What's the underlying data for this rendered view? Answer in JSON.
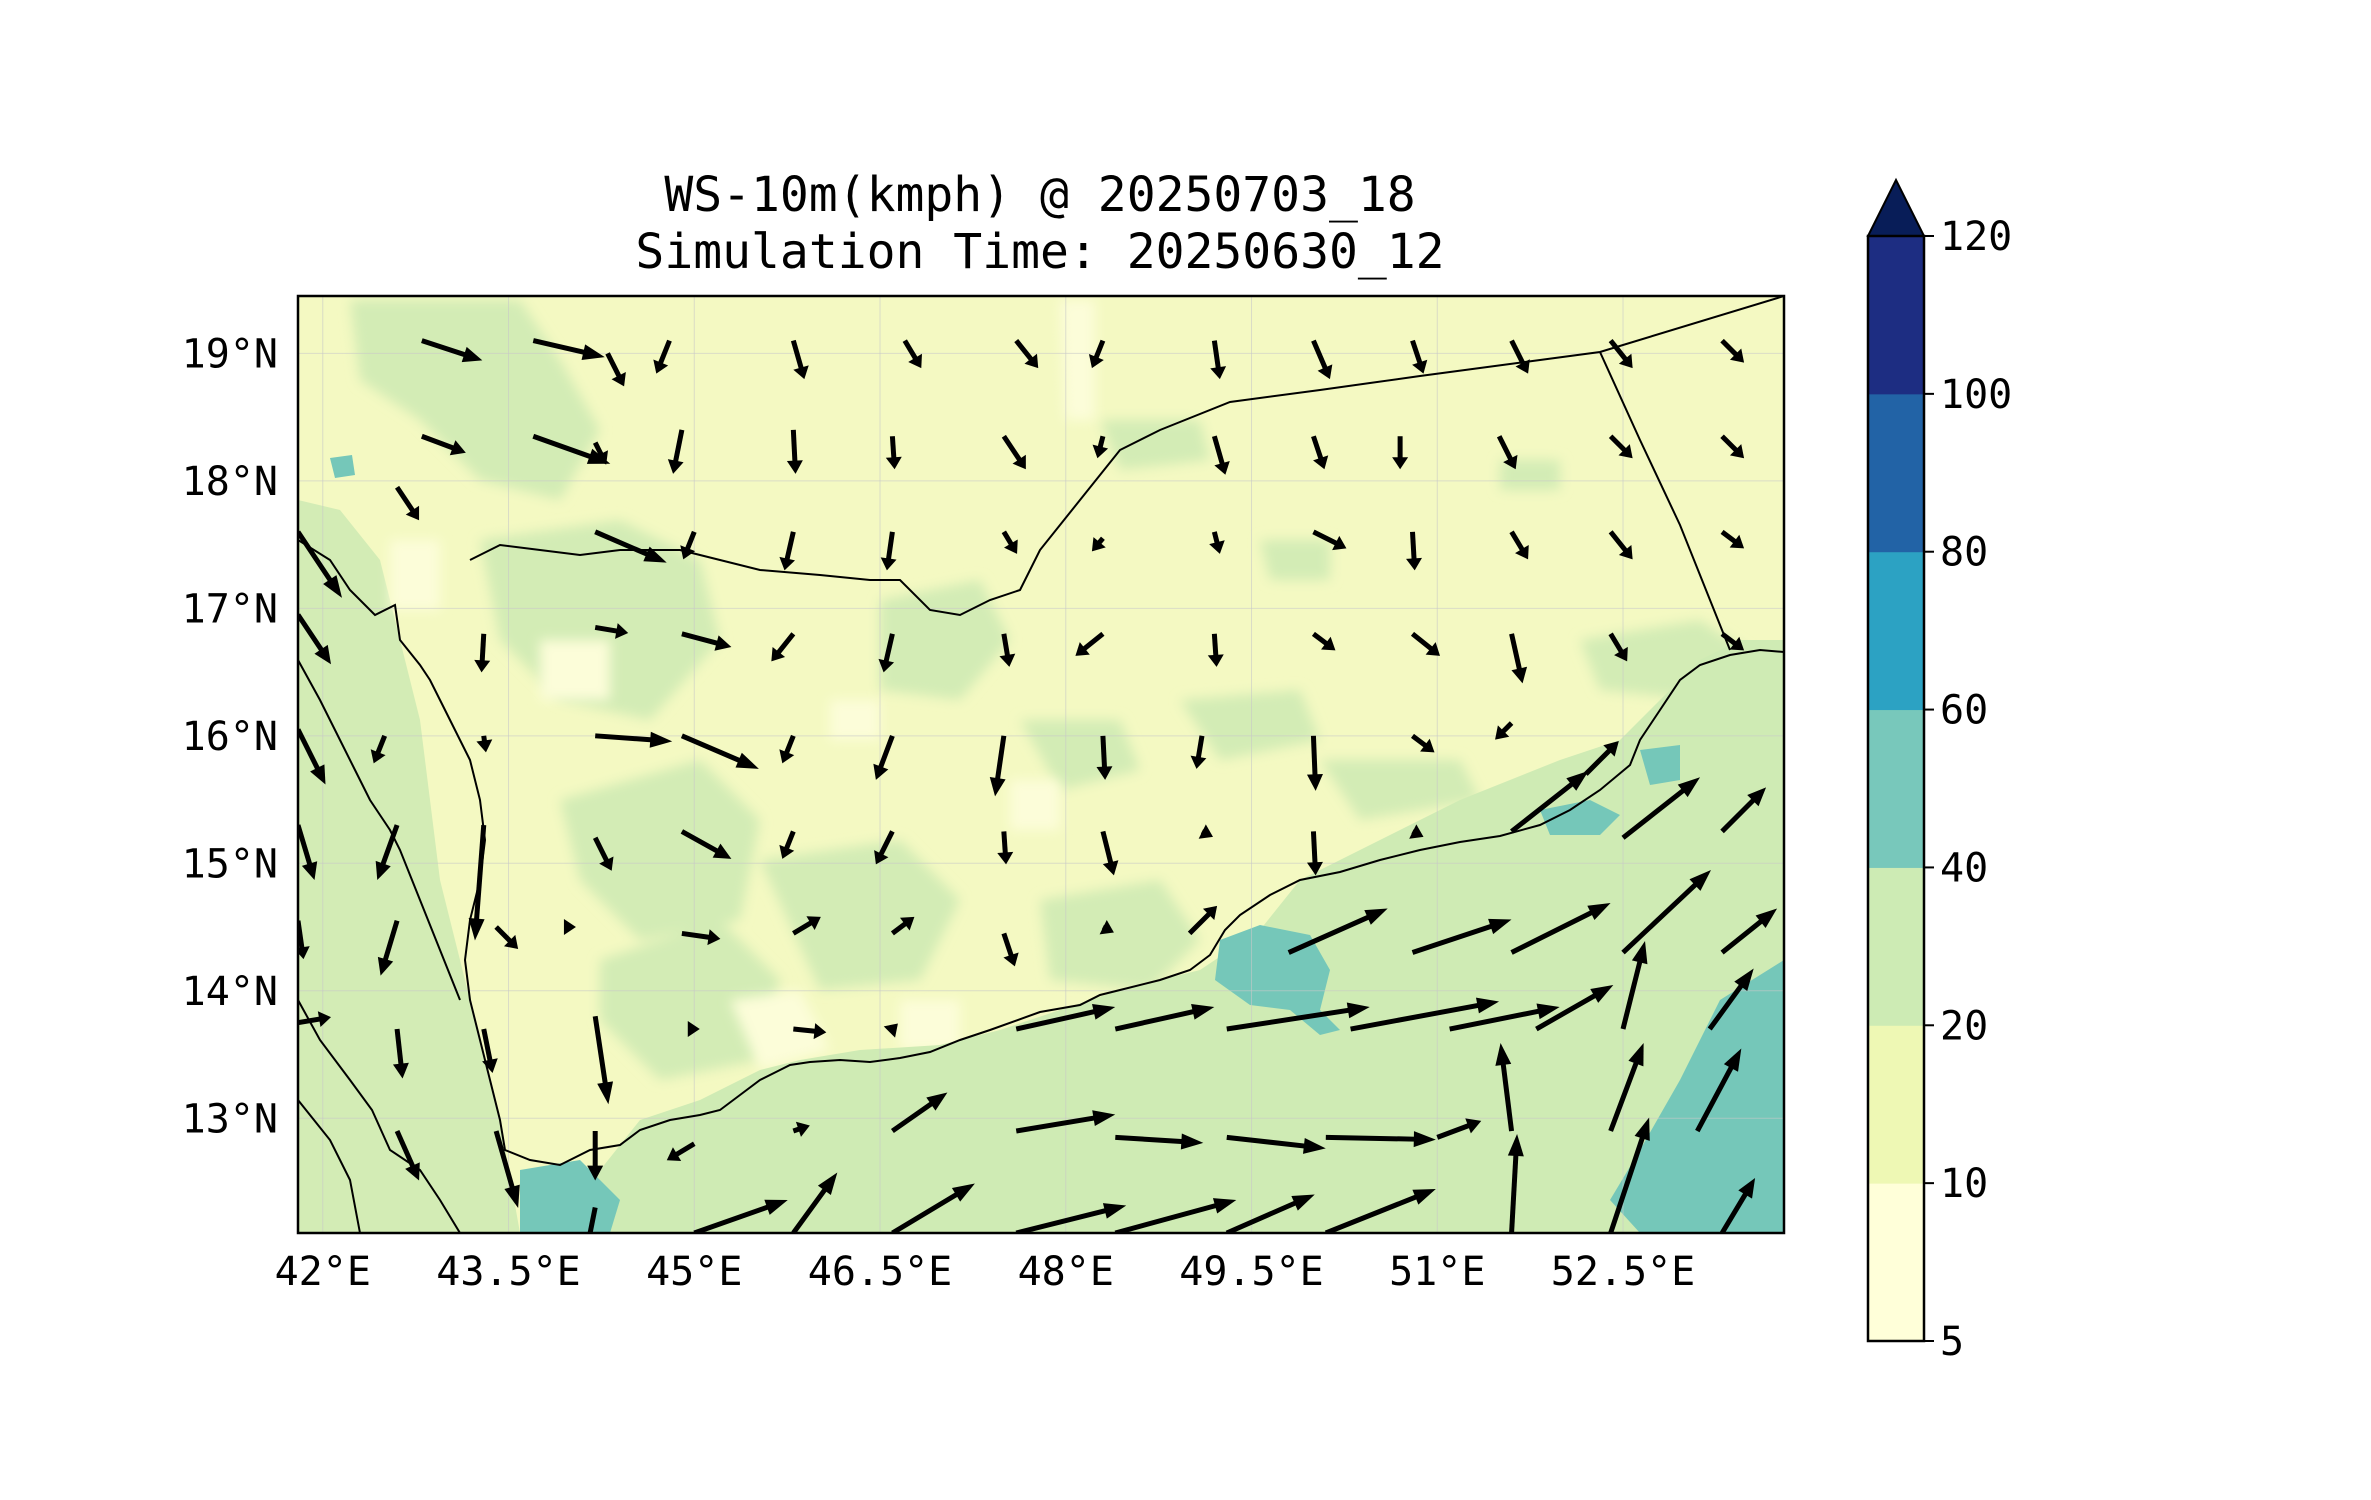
{
  "title_line1": "WS-10m(kmph) @ 20250703_18",
  "title_line2": "Simulation Time: 20250630_12",
  "map": {
    "lon_range": [
      41.8,
      53.8
    ],
    "lat_range": [
      12.1,
      19.45
    ],
    "lon_ticks": [
      42,
      43.5,
      45,
      46.5,
      48,
      49.5,
      51,
      52.5
    ],
    "lon_tick_labels": [
      "42°E",
      "43.5°E",
      "45°E",
      "46.5°E",
      "48°E",
      "49.5°E",
      "51°E",
      "52.5°E"
    ],
    "lat_ticks": [
      19,
      18,
      17,
      16,
      15,
      14,
      13
    ],
    "lat_tick_labels": [
      "19°N",
      "18°N",
      "17°N",
      "16°N",
      "15°N",
      "14°N",
      "13°N"
    ],
    "grid": true,
    "field_colors": {
      "land_base": "#f4f9c2",
      "low_wind": "#fcfdd9",
      "moderate_wind": "#d3ecb5",
      "sea_wind": "#cfebb4",
      "high_wind": "#75c7b9"
    }
  },
  "colorbar": {
    "levels": [
      5,
      10,
      20,
      40,
      60,
      80,
      100,
      120
    ],
    "tick_labels": [
      "5",
      "10",
      "20",
      "40",
      "60",
      "80",
      "100",
      "120"
    ],
    "colors": [
      "#ffffd9",
      "#eef8b4",
      "#cdebb4",
      "#78c8bb",
      "#2ca2c3",
      "#2263a6",
      "#1d2d82"
    ],
    "extend_color": "#081d58",
    "extend": "max"
  },
  "wind_vectors_note": "",
  "wind_vectors": [
    [
      42.8,
      19.1,
      0.55,
      -0.18
    ],
    [
      43.7,
      19.1,
      0.65,
      -0.15
    ],
    [
      44.3,
      19.0,
      0.15,
      -0.3
    ],
    [
      44.8,
      19.1,
      -0.12,
      -0.3
    ],
    [
      45.8,
      19.1,
      0.1,
      -0.35
    ],
    [
      46.7,
      19.1,
      0.15,
      -0.25
    ],
    [
      47.6,
      19.1,
      0.2,
      -0.25
    ],
    [
      48.3,
      19.1,
      -0.1,
      -0.25
    ],
    [
      49.2,
      19.1,
      0.05,
      -0.35
    ],
    [
      50.0,
      19.1,
      0.15,
      -0.35
    ],
    [
      50.8,
      19.1,
      0.1,
      -0.3
    ],
    [
      51.6,
      19.1,
      0.15,
      -0.3
    ],
    [
      52.4,
      19.1,
      0.2,
      -0.25
    ],
    [
      53.3,
      19.1,
      0.2,
      -0.2
    ],
    [
      42.8,
      18.35,
      0.4,
      -0.15
    ],
    [
      43.7,
      18.35,
      0.7,
      -0.25
    ],
    [
      44.2,
      18.3,
      0.1,
      -0.2
    ],
    [
      44.9,
      18.4,
      -0.08,
      -0.4
    ],
    [
      45.8,
      18.4,
      0.02,
      -0.4
    ],
    [
      46.6,
      18.35,
      0.02,
      -0.3
    ],
    [
      47.5,
      18.35,
      0.2,
      -0.3
    ],
    [
      48.3,
      18.35,
      -0.05,
      -0.2
    ],
    [
      49.2,
      18.35,
      0.1,
      -0.35
    ],
    [
      50.0,
      18.35,
      0.1,
      -0.3
    ],
    [
      50.7,
      18.35,
      0.0,
      -0.3
    ],
    [
      51.5,
      18.35,
      0.15,
      -0.3
    ],
    [
      52.4,
      18.35,
      0.2,
      -0.2
    ],
    [
      53.3,
      18.35,
      0.2,
      -0.2
    ],
    [
      42.6,
      17.95,
      0.2,
      -0.3
    ],
    [
      44.2,
      17.6,
      0.65,
      -0.28
    ],
    [
      45.0,
      17.6,
      -0.1,
      -0.25
    ],
    [
      45.8,
      17.6,
      -0.08,
      -0.35
    ],
    [
      46.6,
      17.6,
      -0.05,
      -0.35
    ],
    [
      47.5,
      17.6,
      0.12,
      -0.2
    ],
    [
      48.3,
      17.55,
      -0.1,
      -0.12
    ],
    [
      49.2,
      17.6,
      0.05,
      -0.2
    ],
    [
      50.0,
      17.6,
      0.3,
      -0.15
    ],
    [
      50.8,
      17.6,
      0.02,
      -0.35
    ],
    [
      51.6,
      17.6,
      0.15,
      -0.25
    ],
    [
      52.4,
      17.6,
      0.2,
      -0.25
    ],
    [
      53.3,
      17.6,
      0.2,
      -0.15
    ],
    [
      41.8,
      17.6,
      0.4,
      -0.6
    ],
    [
      41.8,
      16.95,
      0.3,
      -0.45
    ],
    [
      44.2,
      16.85,
      0.3,
      -0.05
    ],
    [
      44.9,
      16.8,
      0.45,
      -0.12
    ],
    [
      45.8,
      16.8,
      -0.2,
      -0.25
    ],
    [
      46.6,
      16.8,
      -0.08,
      -0.35
    ],
    [
      47.5,
      16.8,
      0.05,
      -0.3
    ],
    [
      48.3,
      16.8,
      -0.25,
      -0.2
    ],
    [
      49.2,
      16.8,
      0.02,
      -0.3
    ],
    [
      50.0,
      16.8,
      0.2,
      -0.15
    ],
    [
      50.8,
      16.8,
      0.25,
      -0.2
    ],
    [
      51.6,
      16.8,
      0.1,
      -0.45
    ],
    [
      52.4,
      16.8,
      0.15,
      -0.25
    ],
    [
      53.3,
      16.8,
      0.2,
      -0.15
    ],
    [
      43.3,
      16.8,
      -0.02,
      -0.35
    ],
    [
      41.8,
      16.05,
      0.25,
      -0.5
    ],
    [
      42.5,
      16.0,
      -0.1,
      -0.25
    ],
    [
      43.3,
      16.0,
      0.02,
      -0.15
    ],
    [
      44.2,
      16.0,
      0.7,
      -0.05
    ],
    [
      44.9,
      16.0,
      0.7,
      -0.3
    ],
    [
      45.8,
      16.0,
      -0.1,
      -0.25
    ],
    [
      46.6,
      16.0,
      -0.15,
      -0.4
    ],
    [
      47.5,
      16.0,
      -0.08,
      -0.55
    ],
    [
      48.3,
      16.0,
      0.02,
      -0.4
    ],
    [
      49.1,
      16.0,
      -0.05,
      -0.3
    ],
    [
      50.0,
      16.0,
      0.02,
      -0.5
    ],
    [
      50.8,
      16.0,
      0.2,
      -0.15
    ],
    [
      51.6,
      16.1,
      -0.15,
      -0.15
    ],
    [
      52.2,
      15.7,
      0.3,
      0.3
    ],
    [
      41.8,
      15.3,
      0.15,
      -0.5
    ],
    [
      42.6,
      15.3,
      -0.18,
      -0.5
    ],
    [
      43.3,
      15.3,
      -0.08,
      -1.05
    ],
    [
      44.2,
      15.2,
      0.15,
      -0.3
    ],
    [
      44.9,
      15.25,
      0.45,
      -0.25
    ],
    [
      45.8,
      15.25,
      -0.1,
      -0.25
    ],
    [
      46.6,
      15.25,
      -0.15,
      -0.3
    ],
    [
      47.5,
      15.25,
      0.02,
      -0.3
    ],
    [
      48.3,
      15.25,
      0.1,
      -0.4
    ],
    [
      49.1,
      15.25,
      0.1,
      -0.05
    ],
    [
      50.0,
      15.25,
      0.02,
      -0.4
    ],
    [
      50.8,
      15.25,
      0.1,
      -0.05
    ],
    [
      51.6,
      15.25,
      0.7,
      0.55
    ],
    [
      52.5,
      15.2,
      0.7,
      0.55
    ],
    [
      53.3,
      15.25,
      0.4,
      0.4
    ],
    [
      42.6,
      14.55,
      -0.15,
      -0.5
    ],
    [
      43.4,
      14.5,
      0.2,
      -0.2
    ],
    [
      44.0,
      14.5,
      0.05,
      0.0
    ],
    [
      44.9,
      14.45,
      0.35,
      -0.05
    ],
    [
      45.8,
      14.45,
      0.25,
      0.15
    ],
    [
      46.6,
      14.45,
      0.2,
      0.15
    ],
    [
      47.5,
      14.45,
      0.1,
      -0.3
    ],
    [
      48.3,
      14.5,
      0.1,
      -0.05
    ],
    [
      49.0,
      14.45,
      0.25,
      0.25
    ],
    [
      49.8,
      14.3,
      0.9,
      0.4
    ],
    [
      50.8,
      14.3,
      0.9,
      0.3
    ],
    [
      51.6,
      14.3,
      0.9,
      0.45
    ],
    [
      52.5,
      14.3,
      0.8,
      0.75
    ],
    [
      53.3,
      14.3,
      0.5,
      0.4
    ],
    [
      41.8,
      14.55,
      0.05,
      -0.35
    ],
    [
      41.8,
      13.75,
      0.3,
      0.05
    ],
    [
      42.6,
      13.7,
      0.05,
      -0.45
    ],
    [
      43.3,
      13.7,
      0.08,
      -0.4
    ],
    [
      44.2,
      13.8,
      0.12,
      -0.8
    ],
    [
      45.0,
      13.7,
      0.05,
      0.0
    ],
    [
      45.8,
      13.7,
      0.3,
      -0.03
    ],
    [
      46.6,
      13.7,
      0.05,
      0.05
    ],
    [
      47.6,
      13.7,
      0.9,
      0.2
    ],
    [
      48.4,
      13.7,
      0.9,
      0.2
    ],
    [
      49.3,
      13.7,
      1.3,
      0.2
    ],
    [
      50.3,
      13.7,
      1.35,
      0.25
    ],
    [
      51.1,
      13.7,
      1.0,
      0.2
    ],
    [
      51.8,
      13.7,
      0.7,
      0.4
    ],
    [
      52.5,
      13.7,
      0.2,
      0.8
    ],
    [
      53.2,
      13.7,
      0.4,
      0.55
    ],
    [
      42.6,
      12.9,
      0.2,
      -0.45
    ],
    [
      43.4,
      12.9,
      0.2,
      -0.7
    ],
    [
      44.2,
      12.9,
      0.0,
      -0.45
    ],
    [
      45.0,
      12.8,
      -0.25,
      -0.15
    ],
    [
      45.8,
      12.9,
      0.15,
      0.05
    ],
    [
      46.6,
      12.9,
      0.5,
      0.35
    ],
    [
      47.6,
      12.9,
      0.9,
      0.15
    ],
    [
      48.4,
      12.85,
      0.8,
      -0.05
    ],
    [
      49.3,
      12.85,
      0.9,
      -0.1
    ],
    [
      50.1,
      12.85,
      1.0,
      -0.02
    ],
    [
      51.0,
      12.85,
      0.4,
      0.15
    ],
    [
      51.6,
      12.1,
      0.05,
      0.9
    ],
    [
      51.6,
      12.9,
      -0.1,
      0.8
    ],
    [
      52.4,
      12.9,
      0.3,
      0.8
    ],
    [
      53.1,
      12.9,
      0.4,
      0.75
    ],
    [
      43.5,
      12.1,
      0.3,
      -0.75
    ],
    [
      44.2,
      12.3,
      -0.08,
      -0.4
    ],
    [
      45.0,
      12.1,
      0.85,
      0.3
    ],
    [
      45.8,
      12.1,
      0.4,
      0.55
    ],
    [
      46.6,
      12.1,
      0.75,
      0.45
    ],
    [
      47.6,
      12.1,
      1.0,
      0.25
    ],
    [
      48.4,
      12.1,
      1.1,
      0.3
    ],
    [
      49.3,
      12.1,
      0.8,
      0.35
    ],
    [
      50.1,
      12.1,
      1.0,
      0.4
    ],
    [
      52.4,
      12.1,
      0.35,
      1.05
    ],
    [
      53.3,
      12.1,
      0.3,
      0.5
    ]
  ]
}
